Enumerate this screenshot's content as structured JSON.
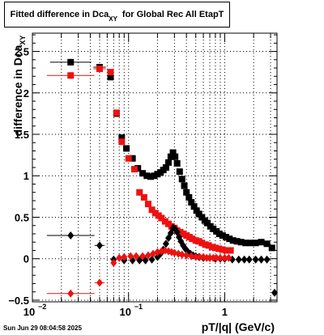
{
  "title": {
    "prefix": "Fitted difference in Dca",
    "subscript": "XY",
    "suffix": "for Global Rec All EtapT"
  },
  "ylabel": {
    "main": "difference in Dca",
    "subscript": "XY"
  },
  "xlabel": "pT/|q| (GeV/c)",
  "datestamp": "Sun Jun 29 08:04:58 2025",
  "chart_data": {
    "type": "scatter",
    "title": "Fitted difference in Dca_XY for Global Rec All EtapT",
    "xlabel": "pT/|q| (GeV/c)",
    "ylabel": "difference in Dca_XY",
    "xscale": "log",
    "xlim": [
      0.01,
      3.5
    ],
    "ylim": [
      -0.52,
      2.72
    ],
    "grid": true,
    "legend": "none",
    "x_tick_labels": [
      {
        "x": 0.01,
        "base": "10",
        "exp": "−2"
      },
      {
        "x": 0.1,
        "base": "10",
        "exp": "−1"
      },
      {
        "x": 1,
        "base": "1",
        "exp": ""
      }
    ],
    "y_ticks": [
      -0.5,
      0,
      0.5,
      1,
      1.5,
      2,
      2.5
    ],
    "y_tick_labels": [
      "−0.5",
      "0",
      "0.5",
      "1",
      "1.5",
      "2",
      "2.5"
    ],
    "series": [
      {
        "color": "#000000",
        "marker": "square",
        "points": [
          [
            0.025,
            2.37,
            0.01,
            0.04
          ],
          [
            0.05,
            2.31,
            0.005,
            0
          ],
          [
            0.065,
            2.19,
            0,
            0
          ],
          [
            0.075,
            1.75,
            0,
            0
          ],
          [
            0.085,
            1.46,
            0,
            0
          ],
          [
            0.095,
            1.33,
            0,
            0
          ],
          [
            0.11,
            1.21,
            0,
            0
          ],
          [
            0.125,
            1.09,
            0,
            0
          ],
          [
            0.14,
            1.03,
            0,
            0
          ],
          [
            0.155,
            1.0,
            0,
            0
          ],
          [
            0.17,
            0.99,
            0,
            0
          ],
          [
            0.185,
            1.0,
            0,
            0
          ],
          [
            0.2,
            1.02,
            0,
            0
          ],
          [
            0.215,
            1.04,
            0,
            0
          ],
          [
            0.23,
            1.07,
            0,
            0
          ],
          [
            0.245,
            1.1,
            0,
            0
          ],
          [
            0.26,
            1.16,
            0,
            0
          ],
          [
            0.275,
            1.23,
            0,
            0
          ],
          [
            0.29,
            1.28,
            0,
            0
          ],
          [
            0.305,
            1.23,
            0,
            0
          ],
          [
            0.32,
            1.15,
            0,
            0
          ],
          [
            0.34,
            1.05,
            0,
            0
          ],
          [
            0.36,
            0.96,
            0,
            0
          ],
          [
            0.38,
            0.88,
            0,
            0
          ],
          [
            0.4,
            0.8,
            0,
            0
          ],
          [
            0.425,
            0.74,
            0,
            0
          ],
          [
            0.45,
            0.68,
            0,
            0
          ],
          [
            0.48,
            0.63,
            0,
            0
          ],
          [
            0.51,
            0.58,
            0,
            0
          ],
          [
            0.54,
            0.54,
            0,
            0
          ],
          [
            0.58,
            0.5,
            0,
            0
          ],
          [
            0.62,
            0.46,
            0,
            0
          ],
          [
            0.66,
            0.43,
            0,
            0
          ],
          [
            0.71,
            0.39,
            0,
            0
          ],
          [
            0.76,
            0.36,
            0,
            0
          ],
          [
            0.82,
            0.33,
            0,
            0
          ],
          [
            0.88,
            0.3,
            0,
            0
          ],
          [
            0.95,
            0.28,
            0,
            0
          ],
          [
            1.03,
            0.26,
            0,
            0
          ],
          [
            1.12,
            0.24,
            0,
            0
          ],
          [
            1.22,
            0.22,
            0,
            0
          ],
          [
            1.34,
            0.21,
            0,
            0
          ],
          [
            1.48,
            0.2,
            0,
            0
          ],
          [
            1.65,
            0.19,
            0,
            0
          ],
          [
            1.85,
            0.19,
            0,
            0
          ],
          [
            2.1,
            0.19,
            0,
            0
          ],
          [
            2.4,
            0.2,
            0,
            0
          ],
          [
            2.75,
            0.18,
            0,
            0
          ],
          [
            3.1,
            0.13,
            0,
            0
          ]
        ]
      },
      {
        "color": "#ee1111",
        "marker": "square",
        "points": [
          [
            0.025,
            2.21,
            0.012,
            0.04
          ],
          [
            0.05,
            2.29,
            0.005,
            0
          ],
          [
            0.065,
            2.25,
            0,
            0
          ],
          [
            0.075,
            1.76,
            0,
            0
          ],
          [
            0.085,
            1.41,
            0,
            0
          ],
          [
            0.1,
            1.21,
            0,
            0
          ],
          [
            0.115,
            1.08,
            0,
            0
          ],
          [
            0.13,
            0.8,
            0,
            0
          ],
          [
            0.145,
            0.74,
            0,
            0
          ],
          [
            0.16,
            0.66,
            0,
            0
          ],
          [
            0.175,
            0.59,
            0,
            0
          ],
          [
            0.19,
            0.55,
            0,
            0
          ],
          [
            0.205,
            0.52,
            0,
            0
          ],
          [
            0.22,
            0.49,
            0,
            0
          ],
          [
            0.24,
            0.45,
            0,
            0
          ],
          [
            0.26,
            0.42,
            0,
            0
          ],
          [
            0.28,
            0.39,
            0,
            0
          ],
          [
            0.3,
            0.37,
            0,
            0
          ],
          [
            0.32,
            0.34,
            0,
            0
          ],
          [
            0.345,
            0.32,
            0,
            0
          ],
          [
            0.37,
            0.3,
            0,
            0
          ],
          [
            0.4,
            0.28,
            0,
            0
          ],
          [
            0.43,
            0.26,
            0,
            0
          ],
          [
            0.46,
            0.24,
            0,
            0
          ],
          [
            0.5,
            0.22,
            0,
            0
          ],
          [
            0.54,
            0.21,
            0,
            0
          ],
          [
            0.58,
            0.19,
            0,
            0
          ],
          [
            0.63,
            0.17,
            0,
            0
          ],
          [
            0.68,
            0.16,
            0,
            0
          ],
          [
            0.74,
            0.14,
            0,
            0
          ],
          [
            0.8,
            0.13,
            0,
            0
          ],
          [
            0.87,
            0.12,
            0,
            0
          ],
          [
            0.95,
            0.11,
            0,
            0
          ],
          [
            1.04,
            0.1,
            0,
            0
          ],
          [
            1.15,
            0.1,
            0,
            0
          ]
        ]
      },
      {
        "color": "#000000",
        "marker": "diamond",
        "points": [
          [
            0.025,
            0.28,
            0.012,
            0
          ],
          [
            0.05,
            0.16,
            0.004,
            0
          ],
          [
            0.07,
            -0.01,
            0,
            0
          ],
          [
            0.09,
            -0.02,
            0,
            0
          ],
          [
            0.11,
            -0.02,
            0,
            0
          ],
          [
            0.13,
            -0.02,
            0,
            0
          ],
          [
            0.15,
            -0.02,
            0,
            0
          ],
          [
            0.175,
            -0.01,
            0,
            0
          ],
          [
            0.2,
            0.02,
            0,
            0
          ],
          [
            0.215,
            0.06,
            0,
            0
          ],
          [
            0.23,
            0.11,
            0,
            0
          ],
          [
            0.245,
            0.18,
            0,
            0
          ],
          [
            0.26,
            0.25,
            0,
            0
          ],
          [
            0.275,
            0.31,
            0,
            0
          ],
          [
            0.29,
            0.37,
            0,
            0
          ],
          [
            0.305,
            0.36,
            0,
            0
          ],
          [
            0.32,
            0.32,
            0,
            0
          ],
          [
            0.335,
            0.26,
            0,
            0
          ],
          [
            0.35,
            0.21,
            0,
            0
          ],
          [
            0.37,
            0.16,
            0,
            0
          ],
          [
            0.39,
            0.12,
            0,
            0
          ],
          [
            0.41,
            0.09,
            0,
            0
          ],
          [
            0.44,
            0.06,
            0,
            0
          ],
          [
            0.47,
            0.04,
            0,
            0
          ],
          [
            0.5,
            0.03,
            0,
            0
          ],
          [
            0.54,
            0.02,
            0,
            0
          ],
          [
            0.6,
            0.01,
            0,
            0
          ],
          [
            0.7,
            0.01,
            0,
            0
          ],
          [
            0.8,
            0.0,
            0,
            0
          ],
          [
            0.9,
            0.0,
            0,
            0
          ],
          [
            1.0,
            0.0,
            0,
            0
          ],
          [
            1.2,
            -0.01,
            0,
            0
          ],
          [
            1.4,
            -0.01,
            0,
            0
          ],
          [
            1.6,
            -0.01,
            0,
            0
          ],
          [
            1.8,
            -0.01,
            0,
            0
          ],
          [
            2.1,
            -0.01,
            0,
            0
          ],
          [
            2.4,
            -0.01,
            0,
            0
          ],
          [
            2.75,
            -0.01,
            0,
            0
          ],
          [
            3.3,
            -0.41,
            0,
            0
          ]
        ]
      },
      {
        "color": "#ee1111",
        "marker": "diamond",
        "points": [
          [
            0.025,
            -0.42,
            0.012,
            0
          ],
          [
            0.05,
            -0.29,
            0.004,
            0
          ],
          [
            0.07,
            -0.05,
            0,
            0
          ],
          [
            0.08,
            0.01,
            0,
            0
          ],
          [
            0.09,
            0.02,
            0,
            0
          ],
          [
            0.105,
            0.03,
            0,
            0
          ],
          [
            0.12,
            0.03,
            0,
            0
          ],
          [
            0.14,
            0.03,
            0,
            0
          ],
          [
            0.16,
            0.04,
            0,
            0
          ],
          [
            0.18,
            0.06,
            0,
            0
          ],
          [
            0.2,
            0.08,
            0,
            0
          ],
          [
            0.22,
            0.09,
            0,
            0
          ],
          [
            0.24,
            0.1,
            0,
            0
          ],
          [
            0.26,
            0.09,
            0,
            0
          ],
          [
            0.28,
            0.08,
            0,
            0
          ],
          [
            0.3,
            0.07,
            0,
            0
          ],
          [
            0.33,
            0.06,
            0,
            0
          ],
          [
            0.36,
            0.05,
            0,
            0
          ],
          [
            0.4,
            0.04,
            0,
            0
          ],
          [
            0.45,
            0.03,
            0,
            0
          ],
          [
            0.5,
            0.02,
            0,
            0
          ],
          [
            0.55,
            0.02,
            0,
            0
          ],
          [
            0.6,
            0.02,
            0,
            0
          ],
          [
            0.65,
            0.01,
            0,
            0
          ],
          [
            0.7,
            0.01,
            0,
            0
          ],
          [
            0.76,
            0.01,
            0,
            0
          ],
          [
            0.82,
            0.01,
            0,
            0
          ],
          [
            0.9,
            0.01,
            0,
            0
          ],
          [
            1.0,
            0.01,
            0,
            0
          ],
          [
            1.1,
            0.01,
            0,
            0
          ]
        ]
      }
    ]
  }
}
